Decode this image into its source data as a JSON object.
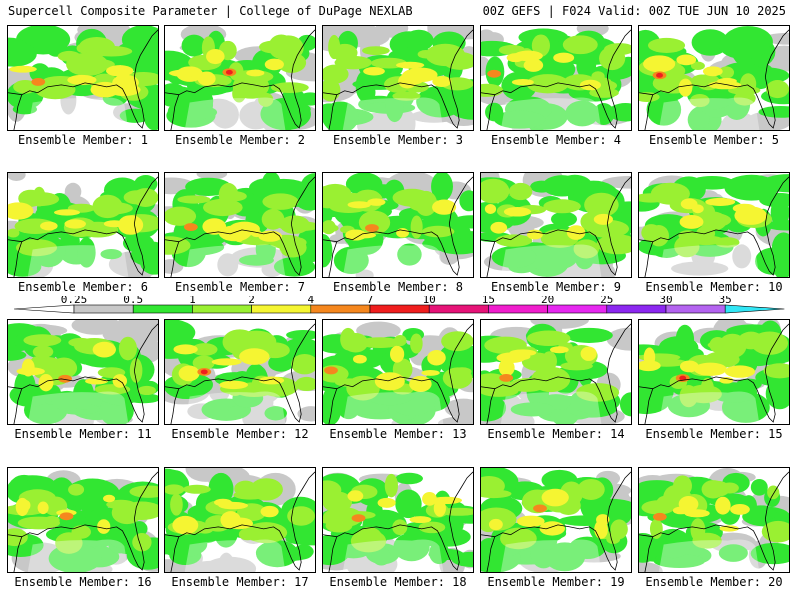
{
  "header": {
    "left": "Supercell Composite Parameter | College of DuPage NEXLAB",
    "right": "00Z GEFS | F024 Valid: 00Z TUE JUN 10 2025"
  },
  "member_prefix": "Ensemble Member:",
  "members": [
    {
      "number": 1,
      "label": "Ensemble Member: 1",
      "peak": 5,
      "coverage": 0.62
    },
    {
      "number": 2,
      "label": "Ensemble Member: 2",
      "peak": 9,
      "coverage": 0.7
    },
    {
      "number": 3,
      "label": "Ensemble Member: 3",
      "peak": 3,
      "coverage": 0.52
    },
    {
      "number": 4,
      "label": "Ensemble Member: 4",
      "peak": 4,
      "coverage": 0.66
    },
    {
      "number": 5,
      "label": "Ensemble Member: 5",
      "peak": 10,
      "coverage": 0.66
    },
    {
      "number": 6,
      "label": "Ensemble Member: 6",
      "peak": 3.5,
      "coverage": 0.6
    },
    {
      "number": 7,
      "label": "Ensemble Member: 7",
      "peak": 5,
      "coverage": 0.64
    },
    {
      "number": 8,
      "label": "Ensemble Member: 8",
      "peak": 5,
      "coverage": 0.7
    },
    {
      "number": 9,
      "label": "Ensemble Member: 9",
      "peak": 3,
      "coverage": 0.66
    },
    {
      "number": 10,
      "label": "Ensemble Member: 10",
      "peak": 3.5,
      "coverage": 0.62
    },
    {
      "number": 11,
      "label": "Ensemble Member: 11",
      "peak": 5,
      "coverage": 0.62
    },
    {
      "number": 12,
      "label": "Ensemble Member: 12",
      "peak": 8,
      "coverage": 0.64
    },
    {
      "number": 13,
      "label": "Ensemble Member: 13",
      "peak": 6,
      "coverage": 0.74
    },
    {
      "number": 14,
      "label": "Ensemble Member: 14",
      "peak": 5,
      "coverage": 0.64
    },
    {
      "number": 15,
      "label": "Ensemble Member: 15",
      "peak": 9,
      "coverage": 0.6
    },
    {
      "number": 16,
      "label": "Ensemble Member: 16",
      "peak": 5,
      "coverage": 0.66
    },
    {
      "number": 17,
      "label": "Ensemble Member: 17",
      "peak": 3.5,
      "coverage": 0.64
    },
    {
      "number": 18,
      "label": "Ensemble Member: 18",
      "peak": 6,
      "coverage": 0.74
    },
    {
      "number": 19,
      "label": "Ensemble Member: 19",
      "peak": 6,
      "coverage": 0.68
    },
    {
      "number": 20,
      "label": "Ensemble Member: 20",
      "peak": 5,
      "coverage": 0.62
    }
  ],
  "legend": {
    "levels": [
      {
        "min": 0.25,
        "max": 0.5,
        "color": "#c8c8c8"
      },
      {
        "min": 0.5,
        "max": 1,
        "color": "#32e632"
      },
      {
        "min": 1,
        "max": 2,
        "color": "#9af032"
      },
      {
        "min": 2,
        "max": 4,
        "color": "#f5f532"
      },
      {
        "min": 4,
        "max": 7,
        "color": "#f5871e"
      },
      {
        "min": 7,
        "max": 10,
        "color": "#f01e1e"
      },
      {
        "min": 10,
        "max": 15,
        "color": "#e61478"
      },
      {
        "min": 15,
        "max": 20,
        "color": "#f01ecd"
      },
      {
        "min": 20,
        "max": 25,
        "color": "#e628f0"
      },
      {
        "min": 25,
        "max": 30,
        "color": "#8c28f0"
      },
      {
        "min": 30,
        "max": 35,
        "color": "#b464f0"
      },
      {
        "min": 35,
        "max": null,
        "color": "#32e6f5"
      }
    ],
    "tick_labels": [
      "0.25",
      "0.5",
      "1",
      "2",
      "4",
      "7",
      "10",
      "15",
      "20",
      "25",
      "30",
      "35"
    ]
  },
  "colors": {
    "coastline": "#000000",
    "border": "#000000",
    "background": "#ffffff"
  }
}
